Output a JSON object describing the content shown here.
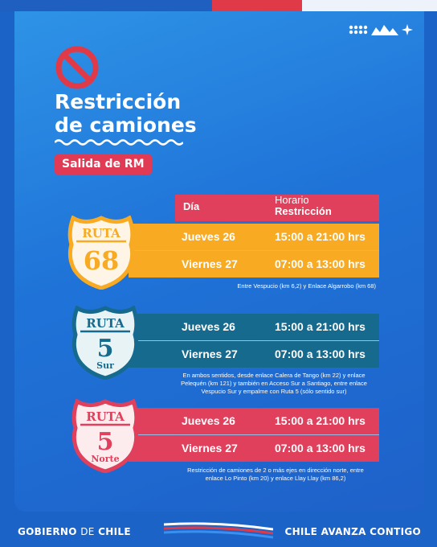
{
  "title_line1": "Restricción",
  "title_line2": "de camiones",
  "subtitle": "Salida de RM",
  "header": {
    "dia": "Día",
    "horario": "Horario",
    "restriccion": "Restricción"
  },
  "routes": [
    {
      "sign_top": "RUTA",
      "sign_num": "68",
      "sign_sub": "",
      "color": "#f8ab22",
      "rows": [
        {
          "day": "Jueves 26",
          "hours": "15:00 a 21:00 hrs"
        },
        {
          "day": "Viernes 27",
          "hours": "07:00 a 13:00 hrs"
        }
      ],
      "note": "Entre Vespucio (km 6,2) y Enlace Algarrobo (km 68)"
    },
    {
      "sign_top": "RUTA",
      "sign_num": "5",
      "sign_sub": "Sur",
      "color": "#166a8e",
      "rows": [
        {
          "day": "Jueves 26",
          "hours": "15:00 a 21:00 hrs"
        },
        {
          "day": "Viernes 27",
          "hours": "07:00 a 13:00 hrs"
        }
      ],
      "note_lines": [
        "En ambos sentidos, desde enlace Calera de Tango (km 22) y enlace",
        "Pelequén (km 121) y también en Acceso Sur a Santiago, entre enlace",
        "Vespucio Sur y empalme con Ruta 5 (sólo sentido sur)"
      ]
    },
    {
      "sign_top": "RUTA",
      "sign_num": "5",
      "sign_sub": "Norte",
      "color": "#e0405c",
      "rows": [
        {
          "day": "Jueves 26",
          "hours": "15:00 a 21:00 hrs"
        },
        {
          "day": "Viernes 27",
          "hours": "07:00 a 13:00 hrs"
        }
      ],
      "note_lines": [
        "Restricción de camiones de 2 o más ejes en dirección norte, entre",
        "enlace Lo Pinto (km 20) y enlace Llay Llay (km 86,2)"
      ]
    }
  ],
  "footer": {
    "left_a": "GOBIERNO",
    "left_b": "DE",
    "left_c": "CHILE",
    "right": "CHILE AVANZA CONTIGO"
  },
  "colors": {
    "bg": "#1b63c7",
    "accent_red": "#e03a48",
    "orange": "#f8ab22",
    "teal": "#166a8e",
    "pink": "#e0405c"
  }
}
